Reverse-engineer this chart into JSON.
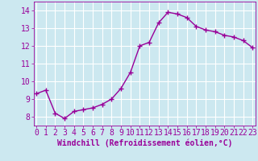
{
  "x": [
    0,
    1,
    2,
    3,
    4,
    5,
    6,
    7,
    8,
    9,
    10,
    11,
    12,
    13,
    14,
    15,
    16,
    17,
    18,
    19,
    20,
    21,
    22,
    23
  ],
  "y": [
    9.3,
    9.5,
    8.2,
    7.9,
    8.3,
    8.4,
    8.5,
    8.7,
    9.0,
    9.6,
    10.5,
    12.0,
    12.2,
    13.3,
    13.9,
    13.8,
    13.6,
    13.1,
    12.9,
    12.8,
    12.6,
    12.5,
    12.3,
    11.9
  ],
  "line_color": "#990099",
  "marker": "+",
  "marker_size": 4,
  "marker_linewidth": 1.0,
  "bg_color": "#cce8f0",
  "grid_color": "#ffffff",
  "xlabel": "Windchill (Refroidissement éolien,°C)",
  "xlabel_color": "#990099",
  "tick_color": "#990099",
  "label_color": "#990099",
  "ylim": [
    7.5,
    14.5
  ],
  "yticks": [
    8,
    9,
    10,
    11,
    12,
    13,
    14
  ],
  "xticks": [
    0,
    1,
    2,
    3,
    4,
    5,
    6,
    7,
    8,
    9,
    10,
    11,
    12,
    13,
    14,
    15,
    16,
    17,
    18,
    19,
    20,
    21,
    22,
    23
  ],
  "linewidth": 1.0,
  "tick_fontsize": 7,
  "xlabel_fontsize": 7,
  "xlim": [
    -0.3,
    23.3
  ]
}
